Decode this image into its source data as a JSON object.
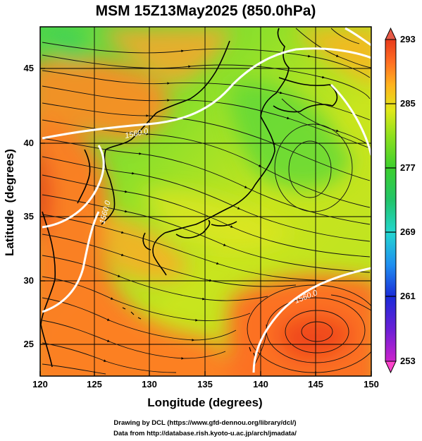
{
  "title": "MSM 15Z13May2025 (850.0hPa)",
  "x_axis": {
    "label": "Longitude (degrees)",
    "range": [
      120,
      150
    ],
    "ticks": [
      "120",
      "125",
      "130",
      "135",
      "140",
      "145",
      "150"
    ]
  },
  "y_axis": {
    "label": "Latitude  (degrees)",
    "range": [
      22.4,
      47.6
    ],
    "ticks": [
      "25",
      "30",
      "35",
      "40",
      "45"
    ]
  },
  "colorbar": {
    "range": [
      253,
      293
    ],
    "ticks": [
      "293",
      "285",
      "277",
      "269",
      "261",
      "253"
    ],
    "colors": [
      "#cc22cc",
      "#6a1fd6",
      "#1a2bd8",
      "#1f8ff0",
      "#23d6d0",
      "#22c46a",
      "#3ccf2e",
      "#8ee01e",
      "#e0e81a",
      "#ffb21e",
      "#ff6e22",
      "#e83a1c"
    ]
  },
  "contours": {
    "color": "#ffffff",
    "labels": [
      "1560.0",
      "1560.0",
      "1560.0"
    ]
  },
  "credits": {
    "line1": "Drawing by DCL (https://www.gfd-dennou.org/library/dcl/)",
    "line2": "Data from http://database.rish.kyoto-u.ac.jp/arch/jmadata/"
  }
}
